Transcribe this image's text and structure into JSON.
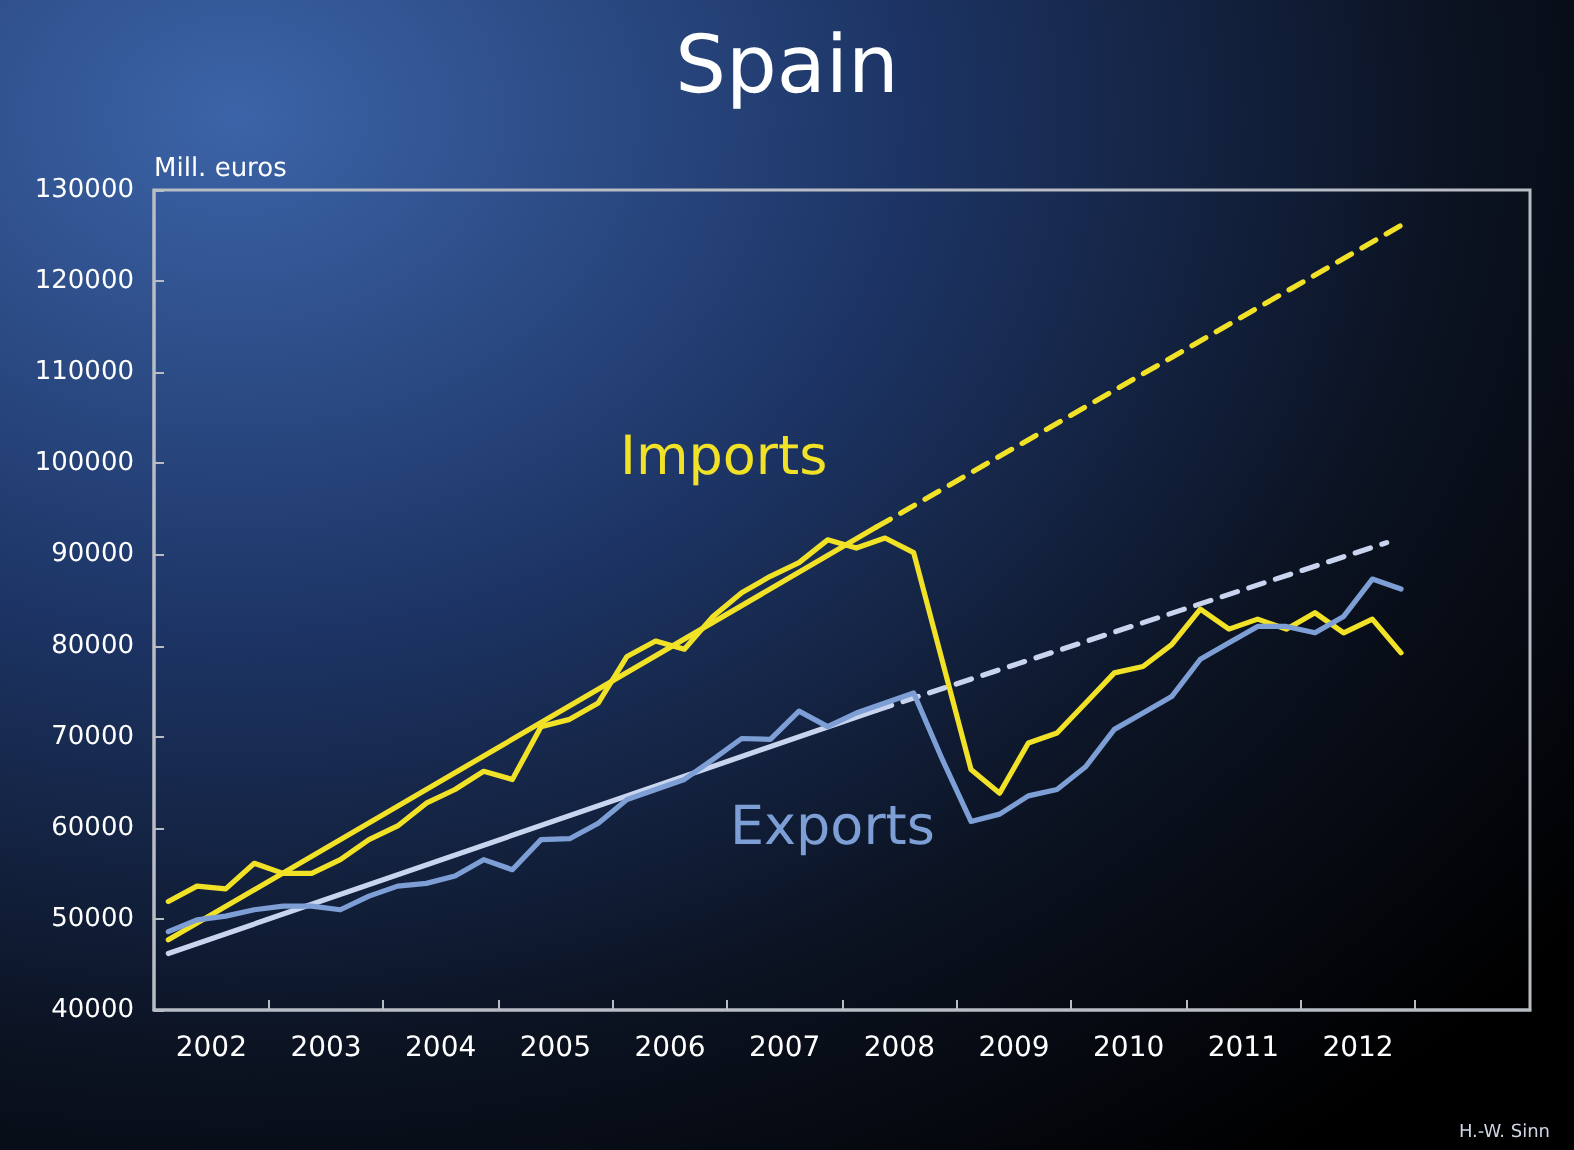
{
  "chart_data": {
    "type": "line",
    "title": "Spain",
    "ylabel": "Mill. euros",
    "annotations": [
      "H.-W. Sinn"
    ],
    "x": [
      2002.125,
      2002.375,
      2002.625,
      2002.875,
      2003.125,
      2003.375,
      2003.625,
      2003.875,
      2004.125,
      2004.375,
      2004.625,
      2004.875,
      2005.125,
      2005.375,
      2005.625,
      2005.875,
      2006.125,
      2006.375,
      2006.625,
      2006.875,
      2007.125,
      2007.375,
      2007.625,
      2007.875,
      2008.125,
      2008.375,
      2008.625,
      2008.875,
      2009.125,
      2009.375,
      2009.625,
      2009.875,
      2010.125,
      2010.375,
      2010.625,
      2010.875,
      2011.125,
      2011.375,
      2011.625,
      2011.875,
      2012.125,
      2012.375,
      2012.625,
      2012.875
    ],
    "series": [
      {
        "name": "Imports",
        "color": "#f2e227",
        "line_style": "solid",
        "x": [
          2002.125,
          2002.375,
          2002.625,
          2002.875,
          2003.125,
          2003.375,
          2003.625,
          2003.875,
          2004.125,
          2004.375,
          2004.625,
          2004.875,
          2005.125,
          2005.375,
          2005.625,
          2005.875,
          2006.125,
          2006.375,
          2006.625,
          2006.875,
          2007.125,
          2007.375,
          2007.625,
          2007.875,
          2008.125,
          2008.375,
          2008.625,
          2009.125,
          2009.375,
          2009.625,
          2009.875,
          2010.125,
          2010.375,
          2010.625,
          2010.875,
          2011.125,
          2011.375,
          2011.625,
          2011.875,
          2012.125,
          2012.375,
          2012.625,
          2012.875
        ],
        "values": [
          51900,
          53600,
          53300,
          56100,
          55000,
          55000,
          56500,
          58700,
          60200,
          62700,
          64200,
          66200,
          65300,
          71100,
          71900,
          73700,
          78800,
          80500,
          79600,
          83200,
          85800,
          87600,
          89100,
          91600,
          90700,
          91800,
          90200,
          66400,
          63800,
          69300,
          70400,
          73700,
          77000,
          77700,
          80100,
          84000,
          81800,
          82900,
          81800,
          83600,
          81400,
          82900,
          79200
        ]
      },
      {
        "name": "Exports",
        "color": "#7d9fd6",
        "line_style": "solid",
        "values": [
          48600,
          49900,
          50300,
          51000,
          51400,
          51400,
          51000,
          52500,
          53600,
          53900,
          54700,
          56500,
          55400,
          58700,
          58800,
          60500,
          63100,
          64200,
          65300,
          67500,
          69800,
          69700,
          72800,
          71100,
          72600,
          73700,
          74800,
          67500,
          60700,
          61500,
          63500,
          64200,
          66700,
          70800,
          72600,
          74400,
          78500,
          80300,
          82100,
          82100,
          81400,
          83200,
          87300,
          86200
        ]
      },
      {
        "color": "#f2e227",
        "line_style": "solid",
        "x": [
          2002.125,
          2008.3
        ],
        "values": [
          47700,
          93000
        ]
      },
      {
        "color": "#f2e227",
        "line_style": "dashed",
        "x": [
          2008.3,
          2012.875
        ],
        "values": [
          93000,
          126100
        ]
      },
      {
        "color": "#c9d5ee",
        "line_style": "solid",
        "x": [
          2002.125,
          2008.3
        ],
        "values": [
          46200,
          72900
        ]
      },
      {
        "color": "#c9d5ee",
        "line_style": "dashed",
        "x": [
          2008.3,
          2012.75
        ],
        "values": [
          72900,
          91300
        ]
      }
    ],
    "xlim": [
      2002,
      2014
    ],
    "xticks": [
      {
        "value": 2003,
        "label": null
      },
      {
        "value": 2004,
        "label": null
      },
      {
        "value": 2005,
        "label": null
      },
      {
        "value": 2006,
        "label": null
      },
      {
        "value": 2007,
        "label": null
      },
      {
        "value": 2008,
        "label": null
      },
      {
        "value": 2009,
        "label": null
      },
      {
        "value": 2010,
        "label": null
      },
      {
        "value": 2011,
        "label": null
      },
      {
        "value": 2012,
        "label": null
      },
      {
        "value": 2013,
        "label": null
      },
      {
        "value": 2002.5,
        "label": "2002"
      },
      {
        "value": 2003.5,
        "label": "2003"
      },
      {
        "value": 2004.5,
        "label": "2004"
      },
      {
        "value": 2005.5,
        "label": "2005"
      },
      {
        "value": 2006.5,
        "label": "2006"
      },
      {
        "value": 2007.5,
        "label": "2007"
      },
      {
        "value": 2008.5,
        "label": "2008"
      },
      {
        "value": 2009.5,
        "label": "2009"
      },
      {
        "value": 2010.5,
        "label": "2010"
      },
      {
        "value": 2011.5,
        "label": "2011"
      },
      {
        "value": 2012.5,
        "label": "2012"
      }
    ],
    "ylim": [
      40000,
      130000
    ],
    "yticks": [
      40000,
      50000,
      60000,
      70000,
      80000,
      90000,
      100000,
      110000,
      120000,
      130000
    ],
    "grid": false,
    "legend": false,
    "marker": "none"
  }
}
